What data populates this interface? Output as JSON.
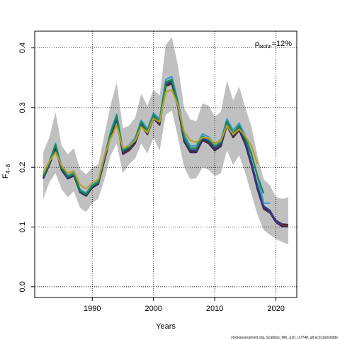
{
  "chart_data": {
    "type": "line",
    "xlabel": "Years",
    "ylabel_main": "F",
    "ylabel_sub": "4−8",
    "annotation_rho": "ρ",
    "annotation_sub": "Mohn",
    "annotation_value": "=12%",
    "footer": "stockassessment.org, Scallops_WK_a10_r17748, git:ec2c2a0c6dde",
    "xlim": [
      1980.6,
      2023.4
    ],
    "ylim": [
      -0.018,
      0.428
    ],
    "x_ticks": [
      1990,
      2000,
      2010,
      2020
    ],
    "y_ticks": [
      0.0,
      0.1,
      0.2,
      0.3,
      0.4
    ],
    "y_tick_labels": [
      "0.0",
      "0.1",
      "0.2",
      "0.3",
      "0.4"
    ],
    "grid": true,
    "band": {
      "x": [
        1982,
        1983,
        1984,
        1985,
        1986,
        1987,
        1988,
        1989,
        1990,
        1991,
        1992,
        1993,
        1994,
        1995,
        1996,
        1997,
        1998,
        1999,
        2000,
        2001,
        2002,
        2003,
        2004,
        2005,
        2006,
        2007,
        2008,
        2009,
        2010,
        2011,
        2012,
        2013,
        2014,
        2015,
        2016,
        2017,
        2018,
        2019,
        2020,
        2021,
        2022
      ],
      "upper": [
        0.226,
        0.25,
        0.292,
        0.236,
        0.222,
        0.232,
        0.197,
        0.188,
        0.2,
        0.205,
        0.255,
        0.305,
        0.342,
        0.265,
        0.27,
        0.283,
        0.323,
        0.303,
        0.33,
        0.32,
        0.405,
        0.418,
        0.37,
        0.3,
        0.28,
        0.277,
        0.307,
        0.303,
        0.285,
        0.293,
        0.345,
        0.312,
        0.335,
        0.3,
        0.268,
        0.218,
        0.18,
        0.17,
        0.15,
        0.147,
        0.15
      ],
      "lower": [
        0.147,
        0.175,
        0.19,
        0.163,
        0.15,
        0.16,
        0.132,
        0.125,
        0.14,
        0.148,
        0.18,
        0.22,
        0.24,
        0.19,
        0.205,
        0.215,
        0.24,
        0.223,
        0.25,
        0.228,
        0.288,
        0.295,
        0.25,
        0.2,
        0.18,
        0.182,
        0.2,
        0.196,
        0.185,
        0.19,
        0.228,
        0.204,
        0.22,
        0.19,
        0.155,
        0.12,
        0.095,
        0.087,
        0.08,
        0.075,
        0.071
      ]
    },
    "series": [
      {
        "color": "#151562",
        "x": [
          1982,
          1983,
          1984,
          1985,
          1986,
          1987,
          1988,
          1989,
          1990,
          1991,
          1992,
          1993,
          1994,
          1995,
          1996,
          1997,
          1998,
          1999,
          2000,
          2001,
          2002,
          2003,
          2004,
          2005,
          2006,
          2007,
          2008,
          2009,
          2010,
          2011,
          2012,
          2013,
          2014,
          2015,
          2016,
          2017,
          2018,
          2019,
          2020,
          2021,
          2022
        ],
        "values": [
          0.181,
          0.204,
          0.232,
          0.195,
          0.181,
          0.186,
          0.158,
          0.152,
          0.166,
          0.172,
          0.212,
          0.252,
          0.28,
          0.222,
          0.228,
          0.24,
          0.27,
          0.255,
          0.282,
          0.271,
          0.336,
          0.34,
          0.3,
          0.243,
          0.225,
          0.225,
          0.245,
          0.24,
          0.228,
          0.235,
          0.27,
          0.25,
          0.262,
          0.238,
          0.203,
          0.162,
          0.13,
          0.124,
          0.108,
          0.101,
          0.101
        ]
      },
      {
        "color": "#8B2A2A",
        "x": [
          1982,
          1983,
          1984,
          1985,
          1986,
          1987,
          1988,
          1989,
          1990,
          1991,
          1992,
          1993,
          1994,
          1995,
          1996,
          1997,
          1998,
          1999,
          2000,
          2001,
          2002,
          2003,
          2004,
          2005,
          2006,
          2007,
          2008,
          2009,
          2010,
          2011,
          2012,
          2013,
          2014,
          2015,
          2016,
          2017,
          2018,
          2019,
          2020,
          2021,
          2022
        ],
        "values": [
          0.182,
          0.205,
          0.233,
          0.196,
          0.182,
          0.187,
          0.159,
          0.153,
          0.167,
          0.173,
          0.213,
          0.253,
          0.281,
          0.223,
          0.229,
          0.241,
          0.271,
          0.256,
          0.283,
          0.272,
          0.337,
          0.341,
          0.301,
          0.244,
          0.226,
          0.226,
          0.246,
          0.241,
          0.229,
          0.236,
          0.271,
          0.251,
          0.263,
          0.239,
          0.204,
          0.163,
          0.131,
          0.125,
          0.109,
          0.103,
          0.102
        ]
      },
      {
        "color": "#333333",
        "x": [
          1982,
          1983,
          1984,
          1985,
          1986,
          1987,
          1988,
          1989,
          1990,
          1991,
          1992,
          1993,
          1994,
          1995,
          1996,
          1997,
          1998,
          1999,
          2000,
          2001,
          2002,
          2003,
          2004,
          2005,
          2006,
          2007,
          2008,
          2009,
          2010,
          2011,
          2012,
          2013,
          2014,
          2015,
          2016,
          2017,
          2018,
          2019,
          2020,
          2021,
          2022
        ],
        "values": [
          0.182,
          0.205,
          0.234,
          0.196,
          0.182,
          0.187,
          0.159,
          0.153,
          0.167,
          0.173,
          0.213,
          0.254,
          0.282,
          0.224,
          0.23,
          0.242,
          0.272,
          0.257,
          0.284,
          0.273,
          0.338,
          0.342,
          0.302,
          0.245,
          0.227,
          0.227,
          0.247,
          0.242,
          0.23,
          0.237,
          0.272,
          0.252,
          0.264,
          0.24,
          0.205,
          0.164,
          0.132,
          0.126,
          0.111,
          0.105,
          0.104
        ]
      },
      {
        "color": "#2f3b9a",
        "x": [
          1982,
          1983,
          1984,
          1985,
          1986,
          1987,
          1988,
          1989,
          1990,
          1991,
          1992,
          1993,
          1994,
          1995,
          1996,
          1997,
          1998,
          1999,
          2000,
          2001,
          2002,
          2003,
          2004,
          2005,
          2006,
          2007,
          2008,
          2009,
          2010,
          2011,
          2012,
          2013,
          2014,
          2015,
          2016,
          2017,
          2018,
          2019,
          2020,
          2021
        ],
        "values": [
          0.183,
          0.207,
          0.236,
          0.198,
          0.183,
          0.188,
          0.16,
          0.154,
          0.168,
          0.174,
          0.215,
          0.256,
          0.284,
          0.226,
          0.232,
          0.244,
          0.274,
          0.259,
          0.286,
          0.275,
          0.34,
          0.344,
          0.304,
          0.247,
          0.229,
          0.229,
          0.249,
          0.244,
          0.232,
          0.239,
          0.274,
          0.254,
          0.266,
          0.243,
          0.209,
          0.168,
          0.135,
          0.128,
          0.11,
          0.104
        ]
      },
      {
        "color": "#3a9bc9",
        "x": [
          1982,
          1983,
          1984,
          1985,
          1986,
          1987,
          1988,
          1989,
          1990,
          1991,
          1992,
          1993,
          1994,
          1995,
          1996,
          1997,
          1998,
          1999,
          2000,
          2001,
          2002,
          2003,
          2004,
          2005,
          2006,
          2007,
          2008,
          2009,
          2010,
          2011,
          2012,
          2013,
          2014,
          2015,
          2016,
          2017,
          2018,
          2019
        ],
        "values": [
          0.186,
          0.21,
          0.24,
          0.201,
          0.186,
          0.191,
          0.163,
          0.157,
          0.171,
          0.177,
          0.219,
          0.26,
          0.289,
          0.231,
          0.237,
          0.249,
          0.279,
          0.264,
          0.291,
          0.281,
          0.347,
          0.352,
          0.311,
          0.255,
          0.236,
          0.236,
          0.256,
          0.251,
          0.239,
          0.246,
          0.281,
          0.262,
          0.274,
          0.252,
          0.224,
          0.183,
          0.14,
          0.14
        ]
      },
      {
        "color": "#1a8a4a",
        "x": [
          1982,
          1983,
          1984,
          1985,
          1986,
          1987,
          1988,
          1989,
          1990,
          1991,
          1992,
          1993,
          1994,
          1995,
          1996,
          1997,
          1998,
          1999,
          2000,
          2001,
          2002,
          2003,
          2004,
          2005,
          2006,
          2007,
          2008,
          2009,
          2010,
          2011,
          2012,
          2013,
          2014,
          2015,
          2016,
          2017,
          2018
        ],
        "values": [
          0.185,
          0.208,
          0.238,
          0.199,
          0.185,
          0.189,
          0.161,
          0.155,
          0.169,
          0.175,
          0.217,
          0.257,
          0.286,
          0.228,
          0.234,
          0.246,
          0.276,
          0.261,
          0.288,
          0.277,
          0.343,
          0.347,
          0.306,
          0.25,
          0.232,
          0.232,
          0.252,
          0.247,
          0.235,
          0.242,
          0.277,
          0.257,
          0.27,
          0.248,
          0.222,
          0.185,
          0.156
        ]
      },
      {
        "color": "#b8a028",
        "x": [
          1982,
          1983,
          1984,
          1985,
          1986,
          1987,
          1988,
          1989,
          1990,
          1991,
          1992,
          1993,
          1994,
          1995,
          1996,
          1997,
          1998,
          1999,
          2000,
          2001,
          2002,
          2003,
          2004,
          2005,
          2006,
          2007,
          2008,
          2009,
          2010,
          2011,
          2012,
          2013,
          2014,
          2015,
          2016,
          2017
        ],
        "values": [
          0.19,
          0.21,
          0.225,
          0.203,
          0.19,
          0.194,
          0.171,
          0.164,
          0.174,
          0.18,
          0.22,
          0.248,
          0.27,
          0.232,
          0.236,
          0.245,
          0.268,
          0.258,
          0.282,
          0.276,
          0.326,
          0.33,
          0.303,
          0.26,
          0.245,
          0.242,
          0.25,
          0.249,
          0.24,
          0.245,
          0.27,
          0.255,
          0.264,
          0.252,
          0.236,
          0.205
        ]
      }
    ]
  }
}
